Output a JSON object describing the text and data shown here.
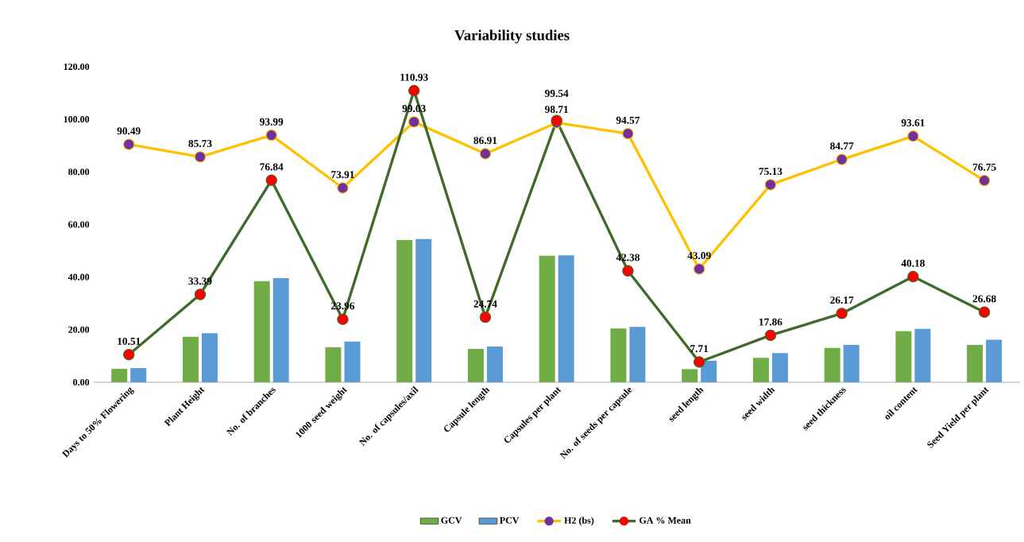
{
  "chart_data": {
    "type": "bar",
    "title": "Variability studies",
    "categories": [
      "Days to 50% Flowering",
      "Plant Height",
      "No. of branches",
      "1000 seed weight",
      "No. of capsules/axil",
      "Capsule length",
      "Capsules per plant",
      "No. of seeds per capsule",
      "seed length",
      "seed width",
      "seed thickness",
      "oil content",
      "Seed Yield per plant"
    ],
    "series": [
      {
        "name": "GCV",
        "color": "#70ad47",
        "values": [
          5.1,
          17.3,
          38.5,
          13.3,
          54.1,
          12.7,
          48.1,
          20.5,
          5.0,
          9.3,
          13.1,
          19.4,
          14.2
        ]
      },
      {
        "name": "PCV",
        "color": "#5b9bd5",
        "values": [
          5.4,
          18.7,
          39.6,
          15.5,
          54.5,
          13.6,
          48.3,
          21.1,
          8.2,
          11.1,
          14.2,
          20.3,
          16.2
        ]
      },
      {
        "name": "H2 (bs)",
        "type": "line",
        "color": "#ffc000",
        "colors": [
          "#7030a0",
          "#7030a0",
          "#7030a0",
          "#7030a0",
          "#7030a0",
          "#7030a0",
          "#7030a0",
          "#7030a0",
          "#7030a0",
          "#7030a0",
          "#7030a0",
          "#7030a0",
          "#7030a0"
        ],
        "values": [
          90.49,
          85.73,
          93.99,
          73.91,
          99.03,
          86.91,
          98.71,
          94.57,
          43.09,
          75.13,
          84.77,
          93.61,
          76.75
        ],
        "value_labels": [
          "90.49",
          "85.73",
          "93.99",
          "73.91",
          "99.03",
          "86.91",
          "98.71",
          "94.57",
          "43.09",
          "75.13",
          "84.77",
          "93.61",
          "76.75"
        ]
      },
      {
        "name": "GA % Mean",
        "type": "line",
        "color": "#3f6a2a",
        "colors": [
          "#ff0000",
          "#ff0000",
          "#ff0000",
          "#ff0000",
          "#ff0000",
          "#ff0000",
          "#ff0000",
          "#ff0000",
          "#ff0000",
          "#ff0000",
          "#ff0000",
          "#ff0000",
          "#ff0000"
        ],
        "values": [
          10.51,
          33.39,
          76.84,
          23.96,
          110.93,
          24.74,
          99.54,
          42.38,
          7.71,
          17.86,
          26.17,
          40.18,
          26.68
        ],
        "value_labels": [
          "10.51",
          "33.39",
          "76.84",
          "23.96",
          "110.93",
          "24.74",
          "99.54",
          "42.38",
          "7.71",
          "17.86",
          "26.17",
          "40.18",
          "26.68"
        ]
      }
    ],
    "ylim": [
      0,
      120
    ],
    "yticks": [
      {
        "value": 0,
        "label": "0.00"
      },
      {
        "value": 20,
        "label": "20.00"
      },
      {
        "value": 40,
        "label": "40.00"
      },
      {
        "value": 60,
        "label": "60.00"
      },
      {
        "value": 80,
        "label": "80.00"
      },
      {
        "value": 100,
        "label": "100.00"
      },
      {
        "value": 120,
        "label": "120.00"
      }
    ],
    "legend": "bottom",
    "marker": "circle",
    "line_style": "solid"
  }
}
